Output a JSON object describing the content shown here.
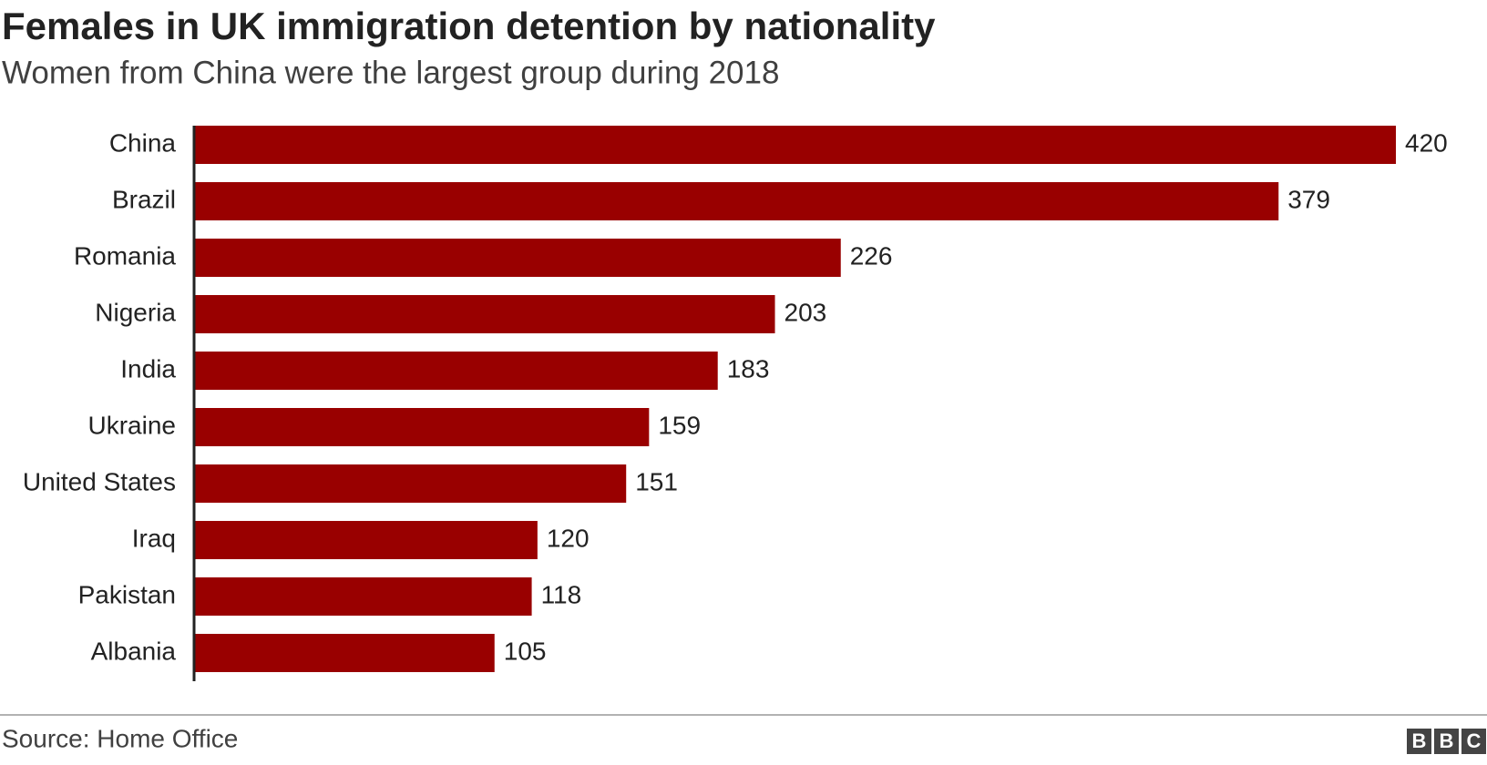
{
  "chart_data": {
    "type": "bar",
    "orientation": "horizontal",
    "title": "Females in UK immigration detention by nationality",
    "subtitle": "Women from China were the largest group during 2018",
    "categories": [
      "China",
      "Brazil",
      "Romania",
      "Nigeria",
      "India",
      "Ukraine",
      "United States",
      "Iraq",
      "Pakistan",
      "Albania"
    ],
    "values": [
      420,
      379,
      226,
      203,
      183,
      159,
      151,
      120,
      118,
      105
    ],
    "color": "#990000",
    "source": "Source: Home Office",
    "logo": [
      "B",
      "B",
      "C"
    ]
  }
}
